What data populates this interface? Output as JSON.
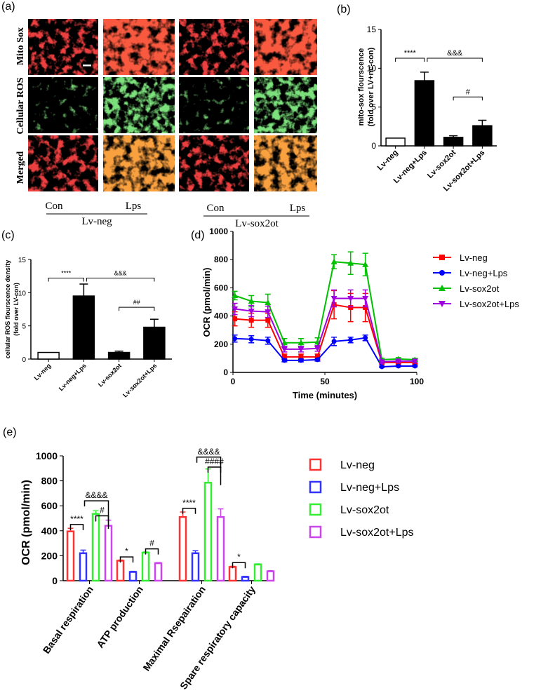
{
  "panel_labels": {
    "a": "(a)",
    "b": "(b)",
    "c": "(c)",
    "d": "(d)",
    "e": "(e)"
  },
  "micrographs": {
    "row_labels": [
      "Mito Sox",
      "Cellular ROS",
      "Merged"
    ],
    "col_labels": [
      "Con",
      "Lps",
      "Con",
      "Lps"
    ],
    "group_labels": [
      "Lv-neg",
      "Lv-sox2ot"
    ]
  },
  "chart_data": [
    {
      "id": "b",
      "type": "bar",
      "ylabel_lines": [
        "mito-sox flourscence",
        "(fold over LV+nc-con)"
      ],
      "categories": [
        "Lv-neg",
        "Lv-neg+Lps",
        "Lv-sox2ot",
        "Lv-sox2ot+Lps"
      ],
      "values": [
        1.0,
        8.4,
        1.1,
        2.6
      ],
      "errors": [
        0.0,
        1.1,
        0.2,
        0.7
      ],
      "fills": [
        "#ffffff",
        "#000000",
        "#000000",
        "#000000"
      ],
      "ylim": [
        0,
        15
      ],
      "yticks": [
        0,
        5,
        10,
        15
      ],
      "annotations": [
        {
          "text": "****",
          "from": 0,
          "to": 1,
          "level": 11.3
        },
        {
          "text": "&&&",
          "from": 1,
          "to": 3,
          "level": 11.3
        },
        {
          "text": "#",
          "from": 2,
          "to": 3,
          "level": 6.3
        }
      ]
    },
    {
      "id": "c",
      "type": "bar",
      "ylabel_lines": [
        "cellular ROS flourscence density",
        "(fold over LV-con)"
      ],
      "categories": [
        "Lv-neg",
        "Lv-neg+Lps",
        "Lv-sox2ot",
        "Lv-sox2ot+Lps"
      ],
      "values": [
        1.0,
        9.5,
        1.0,
        4.8
      ],
      "errors": [
        0.0,
        1.8,
        0.2,
        1.2
      ],
      "fills": [
        "#ffffff",
        "#000000",
        "#000000",
        "#000000"
      ],
      "ylim": [
        0,
        15
      ],
      "yticks": [
        0,
        5,
        10,
        15
      ],
      "annotations": [
        {
          "text": "****",
          "from": 0,
          "to": 1,
          "level": 12.2
        },
        {
          "text": "&&&",
          "from": 1,
          "to": 3,
          "level": 12.2
        },
        {
          "text": "##",
          "from": 2,
          "to": 3,
          "level": 7.8
        }
      ]
    },
    {
      "id": "d",
      "type": "line",
      "xlabel": "Time (minutes)",
      "ylabel": "OCR (pmol/min)",
      "xlim": [
        0,
        100
      ],
      "ylim": [
        0,
        1000
      ],
      "xticks": [
        0,
        50,
        100
      ],
      "yticks": [
        0,
        200,
        400,
        600,
        800,
        1000
      ],
      "x": [
        1,
        10,
        19,
        28,
        37,
        46,
        55,
        64,
        72,
        81,
        90,
        99
      ],
      "series": [
        {
          "name": "Lv-neg",
          "color": "#ff0000",
          "marker": "square",
          "values": [
            380,
            370,
            370,
            110,
            110,
            110,
            480,
            460,
            460,
            70,
            70,
            70
          ],
          "errors": [
            50,
            50,
            50,
            20,
            20,
            20,
            100,
            100,
            100,
            10,
            10,
            10
          ]
        },
        {
          "name": "Lv-neg+Lps",
          "color": "#0000ff",
          "marker": "circle",
          "values": [
            240,
            235,
            225,
            85,
            85,
            90,
            220,
            230,
            245,
            40,
            45,
            45
          ],
          "errors": [
            25,
            25,
            25,
            10,
            10,
            10,
            30,
            20,
            20,
            5,
            5,
            5
          ]
        },
        {
          "name": "Lv-sox2ot",
          "color": "#00c000",
          "marker": "triangle-up",
          "values": [
            545,
            505,
            495,
            210,
            210,
            215,
            785,
            775,
            765,
            90,
            95,
            90
          ],
          "errors": [
            30,
            40,
            60,
            30,
            30,
            30,
            50,
            80,
            80,
            10,
            10,
            10
          ]
        },
        {
          "name": "Lv-sox2ot+Lps",
          "color": "#a000e0",
          "marker": "triangle-down",
          "values": [
            450,
            435,
            430,
            165,
            165,
            170,
            525,
            525,
            525,
            75,
            80,
            80
          ],
          "errors": [
            40,
            40,
            40,
            20,
            20,
            20,
            60,
            60,
            60,
            10,
            10,
            10
          ]
        }
      ],
      "legend": "right"
    },
    {
      "id": "e",
      "type": "bar",
      "ylabel": "OCR (pmol/min)",
      "ylim": [
        0,
        1000
      ],
      "yticks": [
        0,
        200,
        400,
        600,
        800,
        1000
      ],
      "categories": [
        "Basal respiration",
        "ATP production",
        "Maximal Rsepairation",
        "Spare respiratory capacity"
      ],
      "series": [
        {
          "name": "Lv-neg",
          "color": "#ff3333",
          "values": [
            395,
            160,
            510,
            110
          ],
          "errors": [
            25,
            5,
            40,
            5
          ]
        },
        {
          "name": "Lv-neg+Lps",
          "color": "#3333ff",
          "values": [
            220,
            70,
            220,
            30
          ],
          "errors": [
            25,
            5,
            20,
            5
          ]
        },
        {
          "name": "Lv-sox2ot",
          "color": "#33ee33",
          "values": [
            535,
            225,
            785,
            130
          ],
          "errors": [
            25,
            5,
            110,
            5
          ]
        },
        {
          "name": "Lv-sox2ot+Lps",
          "color": "#cc44ee",
          "values": [
            440,
            140,
            510,
            75
          ],
          "errors": [
            45,
            5,
            65,
            5
          ]
        }
      ],
      "legend": "right",
      "annotations": [
        {
          "text": "****",
          "group": 0,
          "from": 0,
          "to": 1,
          "level": 450
        },
        {
          "text": "&&&&",
          "group": 0,
          "from": 1,
          "to": 3,
          "level": 640
        },
        {
          "text": "#",
          "group": 0,
          "from": 2,
          "to": 3,
          "level": 520
        },
        {
          "text": "*",
          "group": 1,
          "from": 0,
          "to": 1,
          "level": 190
        },
        {
          "text": "#",
          "group": 1,
          "from": 2,
          "to": 3,
          "level": 255
        },
        {
          "text": "****",
          "group": 2,
          "from": 0,
          "to": 1,
          "level": 580
        },
        {
          "text": "&&&&",
          "group": 2,
          "from": 1,
          "to": 3,
          "level": 990
        },
        {
          "text": "####",
          "group": 2,
          "from": 2,
          "to": 3,
          "level": 910
        },
        {
          "text": "*",
          "group": 3,
          "from": 0,
          "to": 1,
          "level": 145
        }
      ]
    }
  ],
  "colors": {
    "mito_red": "#d81818",
    "ros_green": "#3aa83a",
    "axis": "#000000"
  }
}
